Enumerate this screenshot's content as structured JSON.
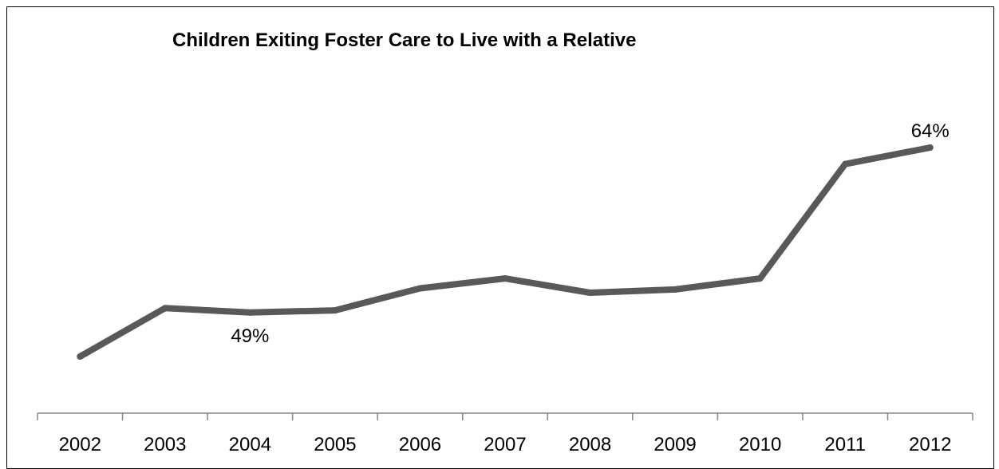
{
  "chart_data": {
    "type": "line",
    "title": "Children Exiting Foster Care to Live with a Relative",
    "xlabel": "",
    "ylabel": "",
    "categories": [
      "2002",
      "2003",
      "2004",
      "2005",
      "2006",
      "2007",
      "2008",
      "2009",
      "2010",
      "2011",
      "2012"
    ],
    "series": [
      {
        "values": [
          45,
          49.4,
          49,
          49.2,
          51.2,
          52.1,
          50.8,
          51.1,
          52.1,
          62.5,
          64
        ],
        "color": "#595959"
      }
    ],
    "data_labels": [
      {
        "category": "2004",
        "text": "49%"
      },
      {
        "category": "2012",
        "text": "64%"
      }
    ],
    "grid": false,
    "legend": "none",
    "y_axis_visible": false
  }
}
